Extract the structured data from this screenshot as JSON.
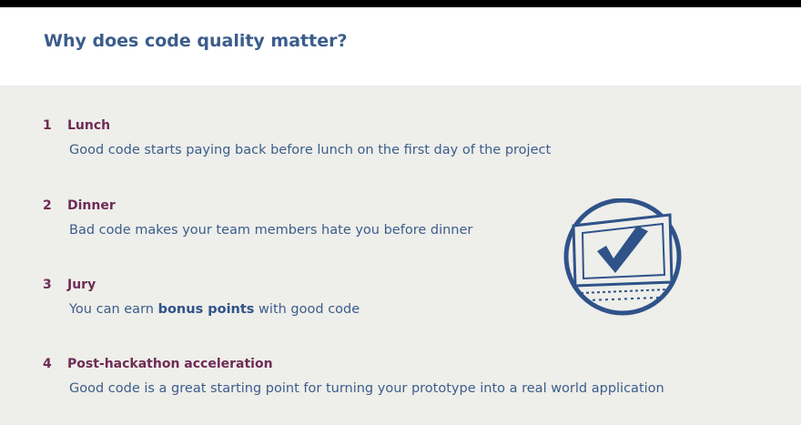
{
  "header": {
    "title": "Why does code quality matter?"
  },
  "items": [
    {
      "number": "1",
      "heading": "Lunch",
      "description": "Good code starts paying back before lunch on the first day of the project"
    },
    {
      "number": "2",
      "heading": "Dinner",
      "description": "Bad code makes your team members hate you before dinner"
    },
    {
      "number": "3",
      "heading": "Jury",
      "description_pre": "You can earn ",
      "description_bold": "bonus points",
      "description_post": " with good code"
    },
    {
      "number": "4",
      "heading": "Post-hackathon acceleration",
      "description": "Good code is a great starting point for turning your prototype into a real world application"
    }
  ],
  "illustration": {
    "icon": "laptop-checkmark-icon"
  },
  "colors": {
    "title": "#3b5d8c",
    "heading": "#6e2c55",
    "text": "#3b5d8c",
    "panel_bg": "#eeeeea",
    "icon_stroke": "#2f5389"
  }
}
